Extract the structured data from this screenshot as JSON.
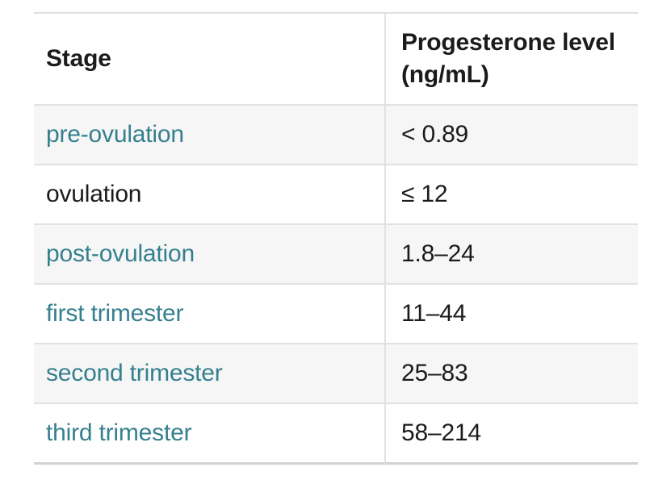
{
  "table": {
    "header": {
      "stage": "Stage",
      "value_line1": "Progesterone level",
      "value_line2": "(ng/mL)"
    },
    "rows": [
      {
        "stage": "pre-ovulation",
        "value": "< 0.89",
        "stage_is_link": true
      },
      {
        "stage": "ovulation",
        "value": "≤ 12",
        "stage_is_link": false
      },
      {
        "stage": "post-ovulation",
        "value": "1.8–24",
        "stage_is_link": true
      },
      {
        "stage": "first trimester",
        "value": "11–44",
        "stage_is_link": true
      },
      {
        "stage": "second trimester",
        "value": "25–83",
        "stage_is_link": true
      },
      {
        "stage": "third trimester",
        "value": "58–214",
        "stage_is_link": true
      }
    ]
  },
  "chart_data": {
    "type": "table",
    "title": "",
    "columns": [
      "Stage",
      "Progesterone level (ng/mL)"
    ],
    "rows": [
      [
        "pre-ovulation",
        "< 0.89"
      ],
      [
        "ovulation",
        "≤ 12"
      ],
      [
        "post-ovulation",
        "1.8–24"
      ],
      [
        "first trimester",
        "11–44"
      ],
      [
        "second trimester",
        "25–83"
      ],
      [
        "third trimester",
        "58–214"
      ]
    ]
  },
  "colors": {
    "link-teal": "#35808e",
    "text-dark": "#1b1b1b",
    "row-stripe": "#f6f6f6",
    "border": "#e1e1e1",
    "border-strong": "#d2d2d2"
  }
}
